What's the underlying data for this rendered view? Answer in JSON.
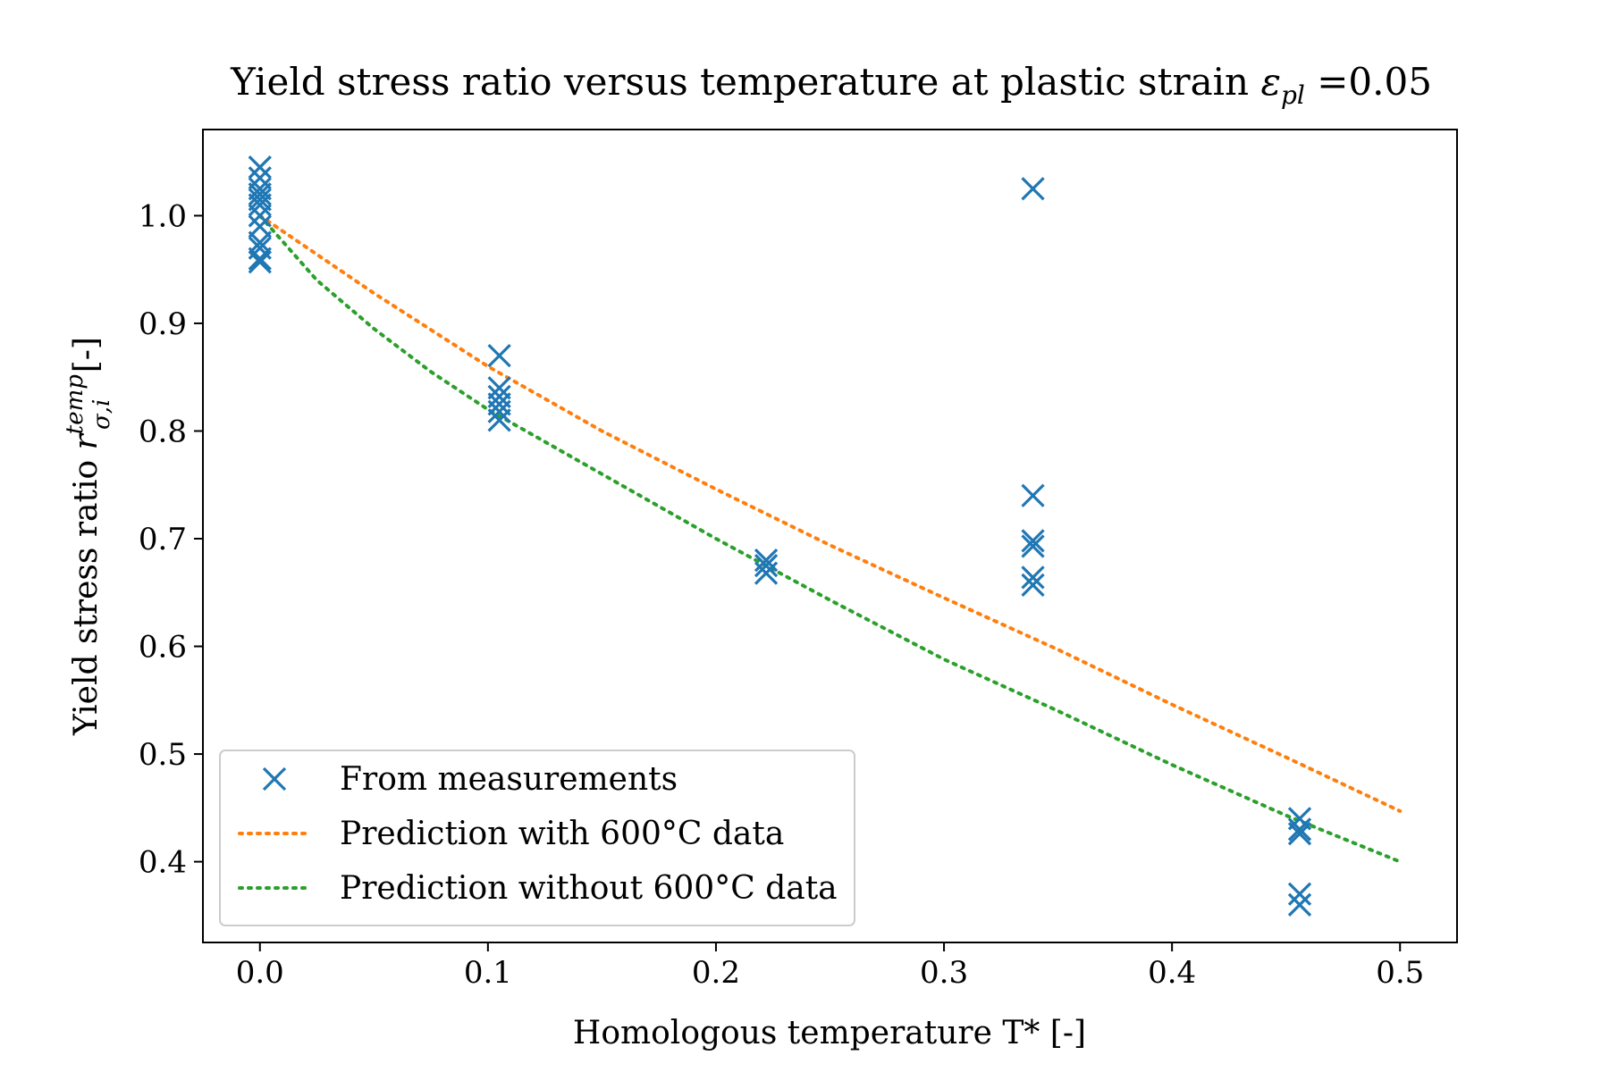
{
  "chart_data": {
    "type": "scatter",
    "title": {
      "main": "Yield stress ratio versus temperature at plastic strain ",
      "symbol": "ε",
      "symbol_sub": "pl",
      "suffix": " =0.05"
    },
    "xlabel": "Homologous temperature T* [-]",
    "ylabel": {
      "main": "Yield stress ratio ",
      "symbol": "r",
      "symbol_sub": "σ,i",
      "symbol_sup": "temp",
      "suffix": " [-]"
    },
    "xlim": [
      -0.025,
      0.525
    ],
    "ylim": [
      0.325,
      1.08
    ],
    "xticks": [
      0.0,
      0.1,
      0.2,
      0.3,
      0.4,
      0.5
    ],
    "xtick_labels": [
      "0.0",
      "0.1",
      "0.2",
      "0.3",
      "0.4",
      "0.5"
    ],
    "yticks": [
      0.4,
      0.5,
      0.6,
      0.7,
      0.8,
      0.9,
      1.0
    ],
    "ytick_labels": [
      "0.4",
      "0.5",
      "0.6",
      "0.7",
      "0.8",
      "0.9",
      "1.0"
    ],
    "grid": false,
    "legend_position": "lower-left",
    "series": [
      {
        "name": "From measurements",
        "kind": "scatter",
        "marker": "x",
        "color": "#1f77b4",
        "points": [
          {
            "x": 0.0,
            "y": 1.045
          },
          {
            "x": 0.0,
            "y": 1.035
          },
          {
            "x": 0.0,
            "y": 1.025
          },
          {
            "x": 0.0,
            "y": 1.02
          },
          {
            "x": 0.0,
            "y": 1.015
          },
          {
            "x": 0.0,
            "y": 1.01
          },
          {
            "x": 0.0,
            "y": 1.0
          },
          {
            "x": 0.0,
            "y": 0.99
          },
          {
            "x": 0.0,
            "y": 0.975
          },
          {
            "x": 0.0,
            "y": 0.97
          },
          {
            "x": 0.0,
            "y": 0.96
          },
          {
            "x": 0.0,
            "y": 0.957
          },
          {
            "x": 0.105,
            "y": 0.87
          },
          {
            "x": 0.105,
            "y": 0.84
          },
          {
            "x": 0.105,
            "y": 0.832
          },
          {
            "x": 0.105,
            "y": 0.825
          },
          {
            "x": 0.105,
            "y": 0.818
          },
          {
            "x": 0.105,
            "y": 0.81
          },
          {
            "x": 0.222,
            "y": 0.68
          },
          {
            "x": 0.222,
            "y": 0.675
          },
          {
            "x": 0.222,
            "y": 0.668
          },
          {
            "x": 0.339,
            "y": 1.025
          },
          {
            "x": 0.339,
            "y": 0.74
          },
          {
            "x": 0.339,
            "y": 0.698
          },
          {
            "x": 0.339,
            "y": 0.693
          },
          {
            "x": 0.339,
            "y": 0.664
          },
          {
            "x": 0.339,
            "y": 0.657
          },
          {
            "x": 0.456,
            "y": 0.44
          },
          {
            "x": 0.456,
            "y": 0.43
          },
          {
            "x": 0.456,
            "y": 0.426
          },
          {
            "x": 0.456,
            "y": 0.37
          },
          {
            "x": 0.456,
            "y": 0.36
          }
        ]
      },
      {
        "name": "Prediction with 600°C data",
        "kind": "line",
        "style": "dotted",
        "color": "#ff7f0e",
        "points": [
          {
            "x": 0.0,
            "y": 1.0
          },
          {
            "x": 0.05,
            "y": 0.928
          },
          {
            "x": 0.1,
            "y": 0.86
          },
          {
            "x": 0.15,
            "y": 0.8
          },
          {
            "x": 0.2,
            "y": 0.746
          },
          {
            "x": 0.25,
            "y": 0.694
          },
          {
            "x": 0.3,
            "y": 0.645
          },
          {
            "x": 0.35,
            "y": 0.597
          },
          {
            "x": 0.4,
            "y": 0.546
          },
          {
            "x": 0.45,
            "y": 0.497
          },
          {
            "x": 0.5,
            "y": 0.447
          }
        ]
      },
      {
        "name": "Prediction without 600°C data",
        "kind": "line",
        "style": "dotted",
        "color": "#2ca02c",
        "points": [
          {
            "x": 0.0,
            "y": 1.0
          },
          {
            "x": 0.025,
            "y": 0.94
          },
          {
            "x": 0.05,
            "y": 0.895
          },
          {
            "x": 0.075,
            "y": 0.855
          },
          {
            "x": 0.1,
            "y": 0.82
          },
          {
            "x": 0.15,
            "y": 0.76
          },
          {
            "x": 0.2,
            "y": 0.7
          },
          {
            "x": 0.25,
            "y": 0.643
          },
          {
            "x": 0.3,
            "y": 0.588
          },
          {
            "x": 0.35,
            "y": 0.54
          },
          {
            "x": 0.4,
            "y": 0.49
          },
          {
            "x": 0.45,
            "y": 0.443
          },
          {
            "x": 0.5,
            "y": 0.4
          }
        ]
      }
    ]
  }
}
